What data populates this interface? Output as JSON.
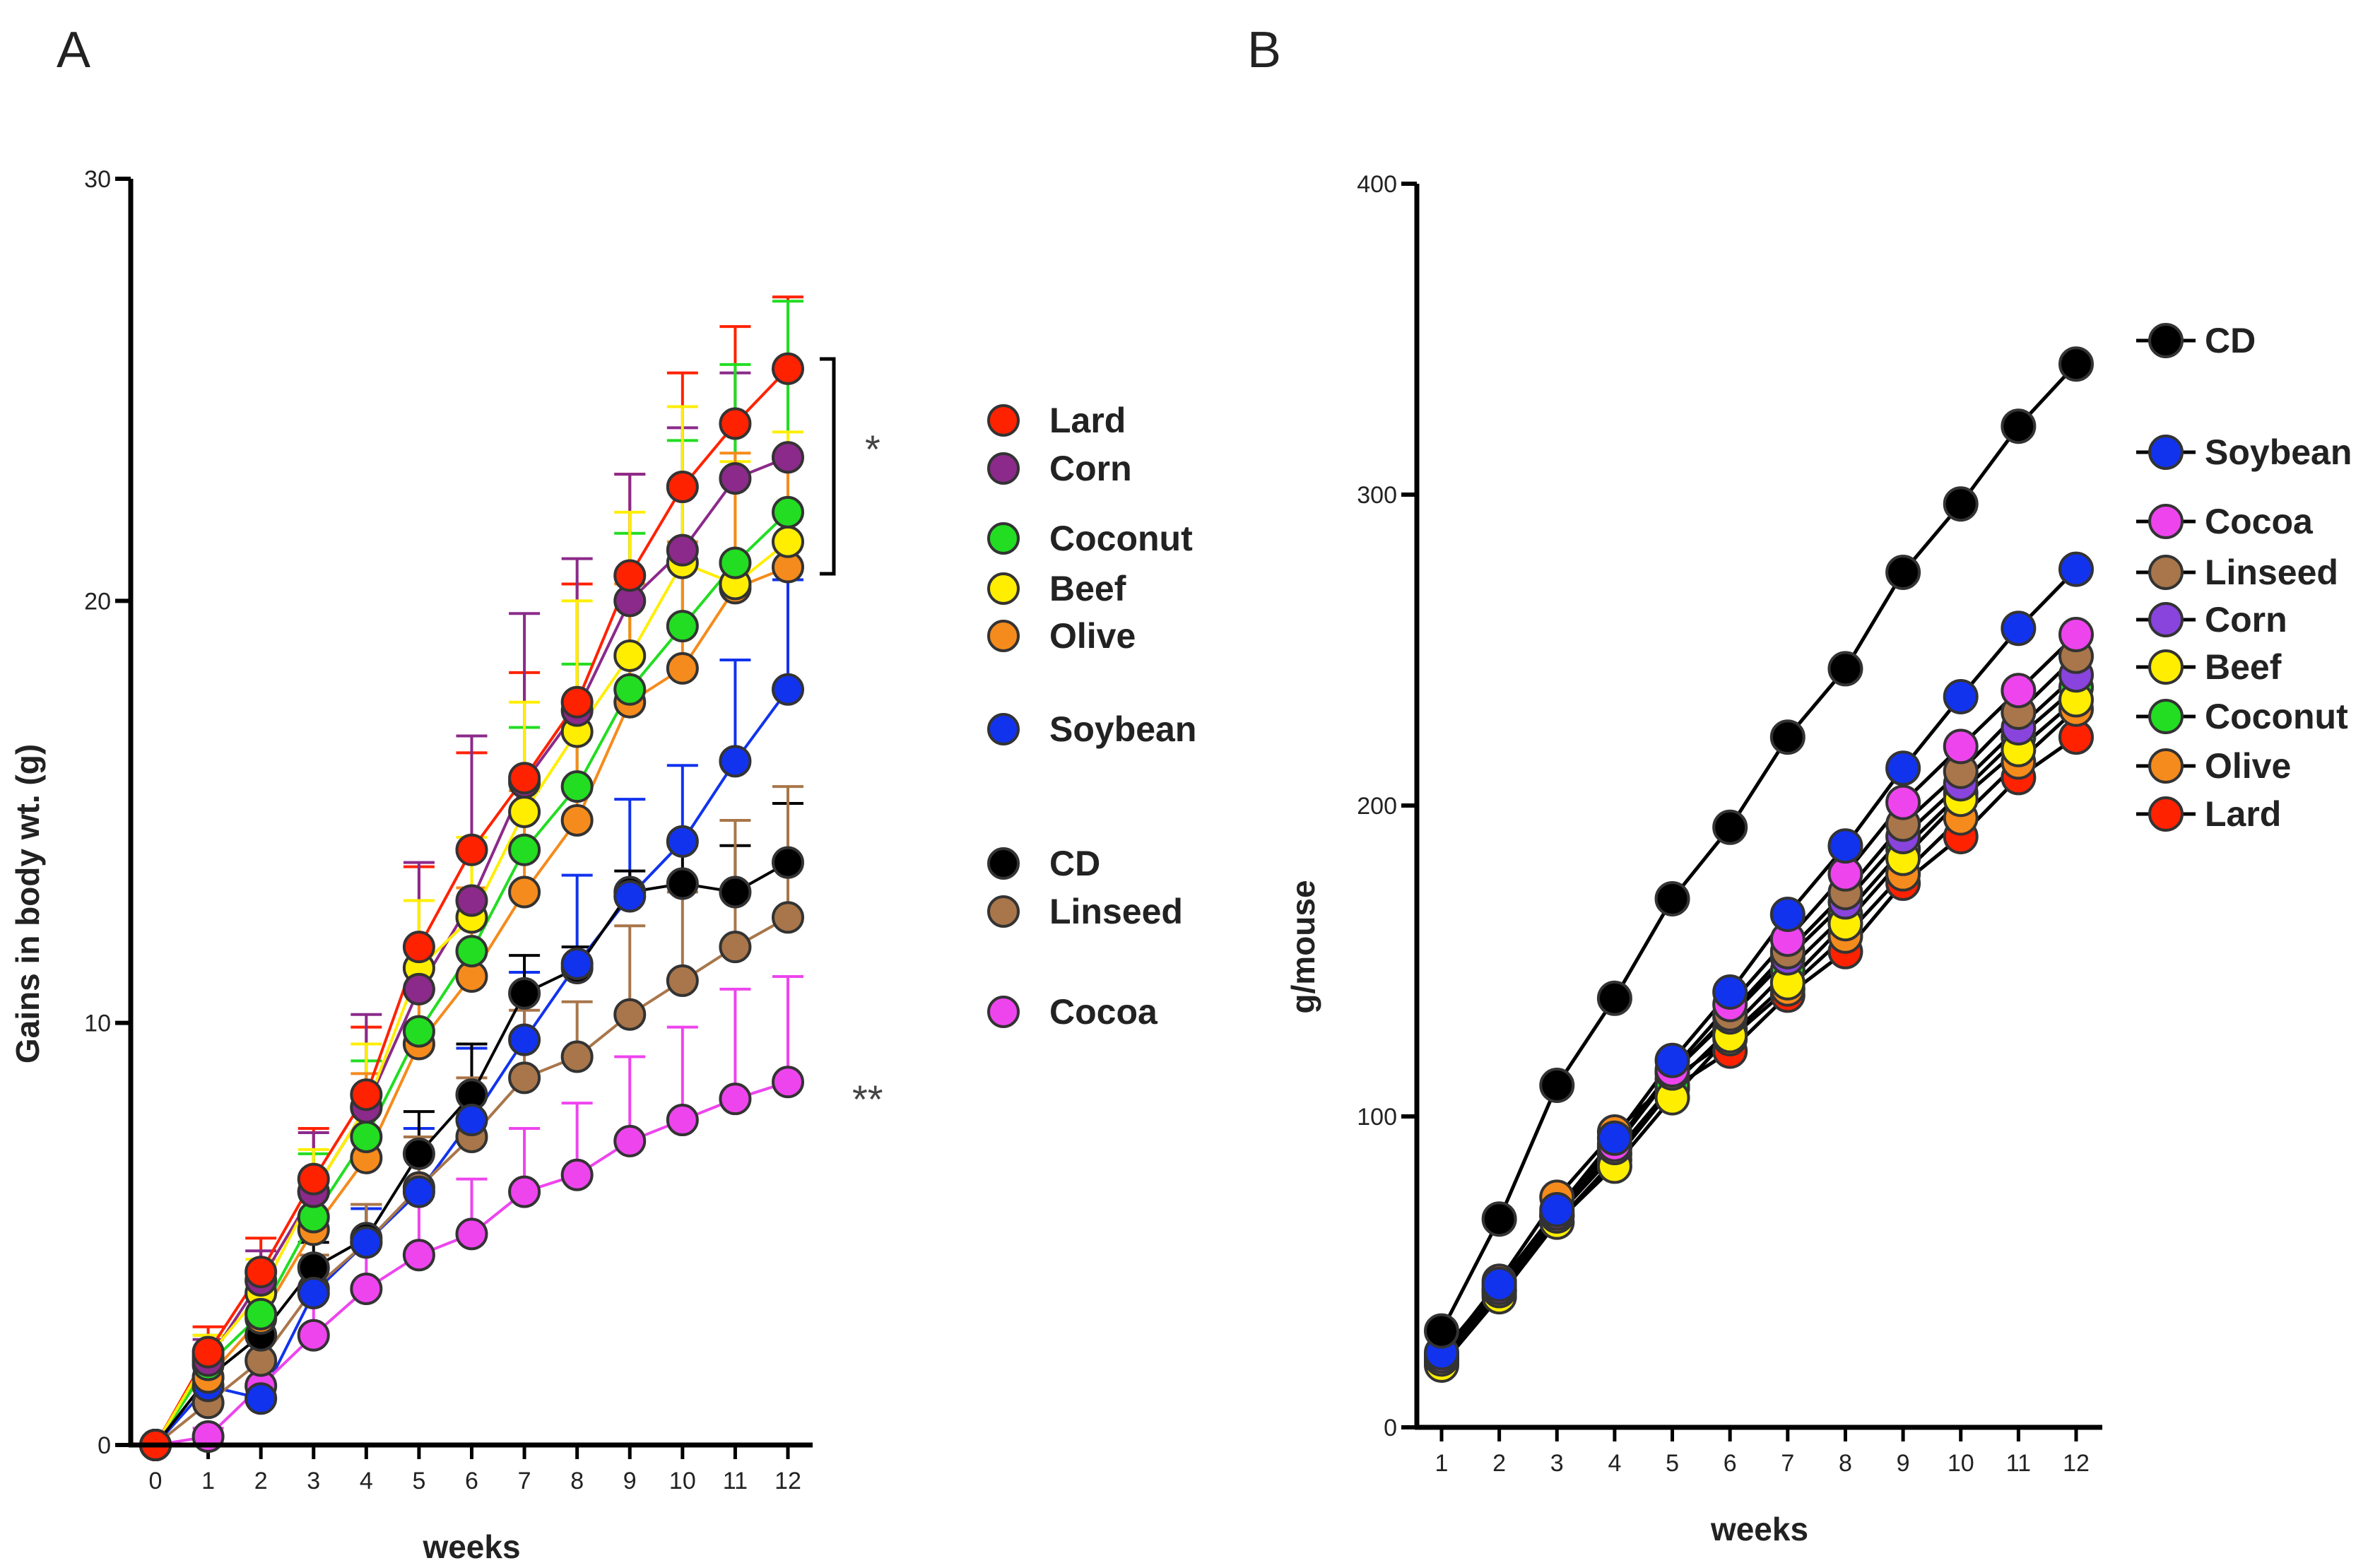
{
  "chart_data": [
    {
      "panel": "A",
      "type": "line",
      "xlabel": "weeks",
      "ylabel": "Gains in body wt. (g)",
      "xlim": [
        0,
        12
      ],
      "ylim": [
        0,
        30
      ],
      "x_ticks": [
        "0",
        "1",
        "2",
        "3",
        "4",
        "5",
        "6",
        "7",
        "8",
        "9",
        "10",
        "11",
        "12"
      ],
      "y_ticks": [
        "0",
        "10",
        "20",
        "30"
      ],
      "legend_entries": [
        "Lard",
        "Corn",
        "Coconut",
        "Beef",
        "Olive",
        "Soybean",
        "CD",
        "Linseed",
        "Cocoa"
      ],
      "annotations": [
        "*",
        "**"
      ],
      "series": [
        {
          "name": "Lard",
          "color": "#ff2200",
          "x": [
            0,
            1,
            2,
            3,
            4,
            5,
            6,
            7,
            8,
            9,
            10,
            11,
            12
          ],
          "values": [
            0,
            2.2,
            4.1,
            6.3,
            8.3,
            11.8,
            14.1,
            15.8,
            17.6,
            20.6,
            22.7,
            24.2,
            25.5
          ],
          "errors": [
            0,
            0.6,
            0.8,
            1.2,
            1.6,
            1.9,
            2.3,
            2.5,
            2.8,
            2.4,
            2.7,
            2.3,
            1.7
          ]
        },
        {
          "name": "Corn",
          "color": "#8b2a8a",
          "x": [
            0,
            1,
            2,
            3,
            4,
            5,
            6,
            7,
            8,
            9,
            10,
            11,
            12
          ],
          "values": [
            0,
            2.0,
            3.9,
            6.0,
            8.0,
            10.8,
            12.9,
            15.7,
            17.4,
            20.0,
            21.2,
            22.9,
            23.4
          ],
          "errors": [
            0,
            0.5,
            0.7,
            1.4,
            2.2,
            3.0,
            3.9,
            4.0,
            3.6,
            3.0,
            2.9,
            2.5,
            2.1
          ]
        },
        {
          "name": "Coconut",
          "color": "#22dd22",
          "x": [
            0,
            1,
            2,
            3,
            4,
            5,
            6,
            7,
            8,
            9,
            10,
            11,
            12
          ],
          "values": [
            0,
            1.9,
            3.1,
            5.4,
            7.3,
            9.8,
            11.7,
            14.1,
            15.6,
            17.9,
            19.4,
            20.9,
            22.1
          ],
          "errors": [
            0,
            0.7,
            0.9,
            1.5,
            1.8,
            2.0,
            2.5,
            2.9,
            2.9,
            3.7,
            4.4,
            4.7,
            5.0
          ]
        },
        {
          "name": "Beef",
          "color": "#ffee00",
          "x": [
            0,
            1,
            2,
            3,
            4,
            5,
            6,
            7,
            8,
            9,
            10,
            11,
            12
          ],
          "values": [
            0,
            2.1,
            3.6,
            6.0,
            8.0,
            11.3,
            12.5,
            15.0,
            16.9,
            18.7,
            20.9,
            20.4,
            21.4
          ],
          "errors": [
            0,
            0.5,
            0.8,
            1.0,
            1.5,
            1.6,
            1.9,
            2.6,
            3.1,
            3.4,
            3.7,
            2.9,
            2.6
          ]
        },
        {
          "name": "Olive",
          "color": "#f58b1c",
          "x": [
            0,
            1,
            2,
            3,
            4,
            5,
            6,
            7,
            8,
            9,
            10,
            11,
            12
          ],
          "values": [
            0,
            1.6,
            3.0,
            5.1,
            6.8,
            9.5,
            11.1,
            13.1,
            14.8,
            17.6,
            18.4,
            20.3,
            20.8
          ],
          "errors": [
            0,
            0.4,
            0.6,
            0.9,
            2.0,
            1.9,
            2.1,
            2.4,
            2.6,
            2.8,
            3.0,
            3.2,
            2.7
          ]
        },
        {
          "name": "Soybean",
          "color": "#1133ee",
          "x": [
            0,
            1,
            2,
            3,
            4,
            5,
            6,
            7,
            8,
            9,
            10,
            11,
            12
          ],
          "values": [
            0,
            1.4,
            1.1,
            3.6,
            4.8,
            6.0,
            7.7,
            9.6,
            11.4,
            13.0,
            14.3,
            16.2,
            17.9
          ],
          "errors": [
            0,
            0.3,
            0.3,
            0.5,
            0.8,
            1.5,
            1.7,
            1.6,
            2.1,
            2.3,
            1.8,
            2.4,
            2.6
          ]
        },
        {
          "name": "CD",
          "color": "#000000",
          "x": [
            0,
            1,
            2,
            3,
            4,
            5,
            6,
            7,
            8,
            9,
            10,
            11,
            12
          ],
          "values": [
            0,
            1.6,
            2.6,
            4.2,
            4.9,
            6.9,
            8.3,
            10.7,
            11.3,
            13.1,
            13.3,
            13.1,
            13.8
          ],
          "errors": [
            0,
            0.3,
            0.4,
            0.6,
            0.8,
            1.0,
            1.2,
            0.9,
            0.5,
            0.5,
            0.9,
            1.1,
            1.4
          ]
        },
        {
          "name": "Linseed",
          "color": "#a8764a",
          "x": [
            0,
            1,
            2,
            3,
            4,
            5,
            6,
            7,
            8,
            9,
            10,
            11,
            12
          ],
          "values": [
            0,
            1.0,
            2.0,
            3.7,
            4.8,
            6.1,
            7.3,
            8.7,
            9.2,
            10.2,
            11.0,
            11.8,
            12.5
          ],
          "errors": [
            0,
            0.3,
            0.5,
            0.8,
            0.9,
            1.2,
            1.4,
            1.6,
            1.3,
            2.1,
            2.1,
            3.0,
            3.1
          ]
        },
        {
          "name": "Cocoa",
          "color": "#ee44ee",
          "x": [
            0,
            1,
            2,
            3,
            4,
            5,
            6,
            7,
            8,
            9,
            10,
            11,
            12
          ],
          "values": [
            0,
            0.2,
            1.4,
            2.6,
            3.7,
            4.5,
            5.0,
            6.0,
            6.4,
            7.2,
            7.7,
            8.2,
            8.6
          ],
          "errors": [
            0,
            0.2,
            0.6,
            0.9,
            1.0,
            1.4,
            1.3,
            1.5,
            1.7,
            2.0,
            2.2,
            2.6,
            2.5
          ]
        }
      ]
    },
    {
      "panel": "B",
      "type": "line",
      "xlabel": "weeks",
      "ylabel": "g/mouse",
      "xlim": [
        1,
        12
      ],
      "ylim": [
        0,
        400
      ],
      "x_ticks": [
        "1",
        "2",
        "3",
        "4",
        "5",
        "6",
        "7",
        "8",
        "9",
        "10",
        "11",
        "12"
      ],
      "y_ticks": [
        "0",
        "100",
        "200",
        "300",
        "400"
      ],
      "legend_entries": [
        "CD",
        "Soybean",
        "Cocoa",
        "Linseed",
        "Corn",
        "Beef",
        "Coconut",
        "Olive",
        "Lard"
      ],
      "series": [
        {
          "name": "CD",
          "color": "#000000",
          "x": [
            1,
            2,
            3,
            4,
            5,
            6,
            7,
            8,
            9,
            10,
            11,
            12
          ],
          "values": [
            31,
            67,
            110,
            138,
            170,
            193,
            222,
            244,
            275,
            297,
            322,
            342
          ]
        },
        {
          "name": "Soybean",
          "color": "#1133ee",
          "x": [
            1,
            2,
            3,
            4,
            5,
            6,
            7,
            8,
            9,
            10,
            11,
            12
          ],
          "values": [
            24,
            46,
            70,
            93,
            118,
            140,
            165,
            187,
            212,
            235,
            257,
            276
          ]
        },
        {
          "name": "Cocoa",
          "color": "#ee44ee",
          "x": [
            1,
            2,
            3,
            4,
            5,
            6,
            7,
            8,
            9,
            10,
            11,
            12
          ],
          "values": [
            23,
            45,
            69,
            91,
            115,
            136,
            157,
            178,
            201,
            219,
            237,
            255
          ]
        },
        {
          "name": "Linseed",
          "color": "#a8764a",
          "x": [
            1,
            2,
            3,
            4,
            5,
            6,
            7,
            8,
            9,
            10,
            11,
            12
          ],
          "values": [
            22,
            44,
            68,
            90,
            114,
            133,
            153,
            172,
            194,
            211,
            230,
            248
          ]
        },
        {
          "name": "Corn",
          "color": "#8844dd",
          "x": [
            1,
            2,
            3,
            4,
            5,
            6,
            7,
            8,
            9,
            10,
            11,
            12
          ],
          "values": [
            22,
            44,
            68,
            90,
            114,
            132,
            151,
            169,
            190,
            207,
            225,
            242
          ]
        },
        {
          "name": "Beef",
          "color": "#ffee00",
          "x": [
            1,
            2,
            3,
            4,
            5,
            6,
            7,
            8,
            9,
            10,
            11,
            12
          ],
          "values": [
            20,
            42,
            66,
            84,
            106,
            126,
            143,
            162,
            183,
            202,
            218,
            234
          ]
        },
        {
          "name": "Coconut",
          "color": "#22dd22",
          "x": [
            1,
            2,
            3,
            4,
            5,
            6,
            7,
            8,
            9,
            10,
            11,
            12
          ],
          "values": [
            22,
            44,
            68,
            88,
            110,
            128,
            147,
            165,
            186,
            204,
            222,
            238
          ]
        },
        {
          "name": "Olive",
          "color": "#f58b1c",
          "x": [
            1,
            2,
            3,
            4,
            5,
            6,
            7,
            8,
            9,
            10,
            11,
            12
          ],
          "values": [
            23,
            47,
            74,
            95,
            112,
            125,
            141,
            158,
            178,
            196,
            214,
            231
          ]
        },
        {
          "name": "Lard",
          "color": "#ff2200",
          "x": [
            1,
            2,
            3,
            4,
            5,
            6,
            7,
            8,
            9,
            10,
            11,
            12
          ],
          "values": [
            21,
            43,
            66,
            86,
            109,
            121,
            139,
            153,
            175,
            190,
            209,
            222
          ]
        }
      ]
    }
  ]
}
